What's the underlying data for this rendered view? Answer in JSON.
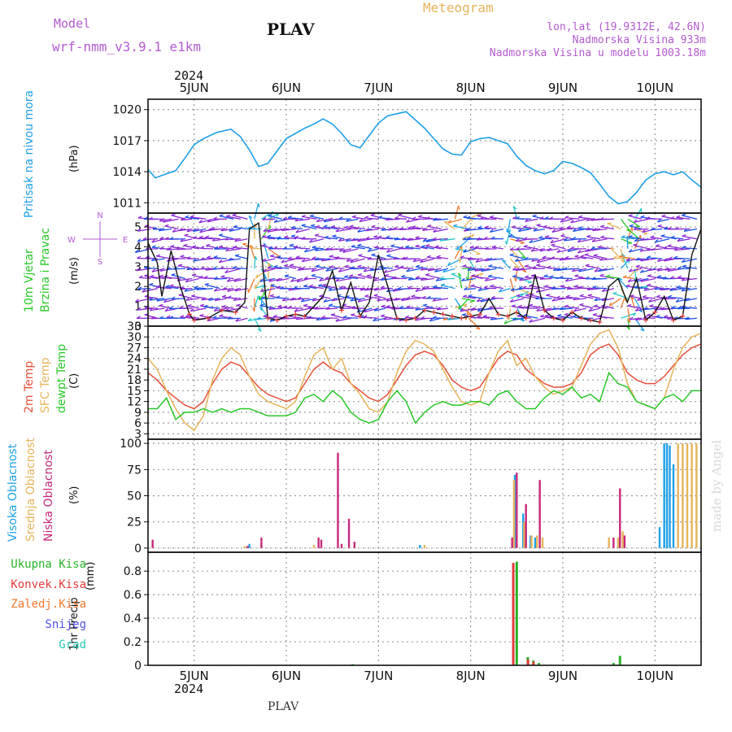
{
  "header": {
    "model_label": "Model",
    "model_name": "wrf-nmm_v3.9.1 e1km",
    "station": "PLAV",
    "product": "Meteogram",
    "coords": "lon,lat (19.9312E, 42.6N)",
    "elevation": "Nadmorska Visina 933m",
    "model_elevation": "Nadmorska Visina u modelu 1003.18m",
    "footer_station": "PLAV",
    "watermark": "made by Angel"
  },
  "colors": {
    "pressure": "#1ea0e6",
    "temp2m": "#e6503c",
    "sfc": "#e6b45a",
    "dewpt": "#28c828",
    "high_cloud": "#1ea0e6",
    "mid_cloud": "#e6b45a",
    "low_cloud": "#c8287a",
    "total_precip": "#28b428",
    "conv_precip": "#e63c3c",
    "strat_precip": "#f07830",
    "snow": "#5050e6",
    "grad": "#28c8b4"
  },
  "time_axis": {
    "year": "2024",
    "days": [
      "5JUN",
      "6JUN",
      "7JUN",
      "8JUN",
      "9JUN",
      "10JUN"
    ],
    "t_range": [
      -0.5,
      5.5
    ]
  },
  "chart_data": [
    {
      "type": "line",
      "name": "pressure",
      "ylabel": "Pritisak na nivou mora",
      "unit": "(hPa)",
      "ylim": [
        1010,
        1021
      ],
      "yticks": [
        1011,
        1014,
        1017,
        1020
      ],
      "x": [
        -0.5,
        -0.42,
        -0.3,
        -0.2,
        -0.1,
        0.0,
        0.1,
        0.25,
        0.4,
        0.5,
        0.6,
        0.7,
        0.8,
        0.9,
        1.0,
        1.1,
        1.2,
        1.3,
        1.4,
        1.5,
        1.6,
        1.7,
        1.8,
        1.9,
        2.0,
        2.1,
        2.2,
        2.3,
        2.4,
        2.5,
        2.6,
        2.7,
        2.8,
        2.9,
        3.0,
        3.1,
        3.2,
        3.3,
        3.4,
        3.5,
        3.6,
        3.7,
        3.8,
        3.9,
        4.0,
        4.1,
        4.2,
        4.3,
        4.4,
        4.5,
        4.6,
        4.7,
        4.8,
        4.9,
        5.0,
        5.1,
        5.2,
        5.3,
        5.4,
        5.5
      ],
      "y": [
        1014.2,
        1013.4,
        1013.8,
        1014.1,
        1015.3,
        1016.6,
        1017.2,
        1017.8,
        1018.1,
        1017.4,
        1016.1,
        1014.5,
        1014.8,
        1016.0,
        1017.2,
        1017.7,
        1018.2,
        1018.6,
        1019.1,
        1018.6,
        1017.7,
        1016.6,
        1016.3,
        1017.5,
        1018.7,
        1019.4,
        1019.6,
        1019.8,
        1019.0,
        1018.2,
        1017.2,
        1016.2,
        1015.7,
        1015.6,
        1016.9,
        1017.2,
        1017.3,
        1017.0,
        1016.7,
        1015.5,
        1014.6,
        1014.1,
        1013.8,
        1014.1,
        1015.0,
        1014.8,
        1014.4,
        1013.9,
        1012.8,
        1011.6,
        1010.9,
        1011.1,
        1012.0,
        1013.2,
        1013.8,
        1014.0,
        1013.7,
        1014.0,
        1013.2,
        1012.5
      ]
    },
    {
      "type": "line",
      "name": "wind",
      "ylabel": "10m Vjetar Brzina i Pravac",
      "unit": "(m/s)",
      "ylim": [
        0,
        5.7
      ],
      "yticks": [
        0,
        1,
        2,
        3,
        4,
        5
      ],
      "compass": {
        "n": "N",
        "s": "S",
        "e": "E",
        "w": "W"
      },
      "x": [
        -0.5,
        -0.4,
        -0.35,
        -0.25,
        -0.15,
        -0.05,
        0.0,
        0.15,
        0.3,
        0.45,
        0.55,
        0.6,
        0.7,
        0.8,
        0.9,
        1.0,
        1.1,
        1.2,
        1.3,
        1.4,
        1.5,
        1.6,
        1.7,
        1.8,
        1.9,
        2.0,
        2.1,
        2.2,
        2.3,
        2.4,
        2.5,
        2.6,
        2.7,
        2.8,
        2.9,
        3.0,
        3.1,
        3.2,
        3.3,
        3.4,
        3.5,
        3.6,
        3.7,
        3.8,
        3.9,
        4.0,
        4.1,
        4.2,
        4.3,
        4.4,
        4.5,
        4.6,
        4.7,
        4.8,
        4.9,
        5.0,
        5.1,
        5.2,
        5.3,
        5.4,
        5.5
      ],
      "y": [
        4.2,
        3.2,
        1.5,
        3.8,
        2.0,
        0.6,
        0.3,
        0.4,
        0.8,
        0.7,
        1.2,
        4.9,
        5.2,
        0.4,
        0.3,
        0.5,
        0.6,
        0.5,
        1.0,
        1.5,
        2.8,
        0.8,
        2.2,
        0.5,
        1.2,
        3.6,
        2.0,
        0.4,
        0.3,
        0.4,
        0.8,
        0.7,
        0.6,
        0.5,
        0.4,
        0.5,
        0.6,
        1.4,
        0.6,
        0.5,
        0.7,
        0.4,
        2.6,
        0.8,
        0.4,
        0.3,
        0.7,
        0.4,
        0.3,
        0.2,
        2.0,
        2.4,
        1.2,
        2.4,
        0.3,
        0.7,
        1.5,
        0.3,
        0.5,
        3.6,
        4.9
      ]
    },
    {
      "type": "line",
      "name": "temperature",
      "ylabel": [
        "2m Temp",
        "SFC Temp",
        "dewpt Temp"
      ],
      "unit": "(C)",
      "ylim": [
        1.5,
        33
      ],
      "yticks": [
        3,
        6,
        9,
        12,
        15,
        18,
        21,
        24,
        27,
        30,
        33
      ],
      "x": [
        -0.5,
        -0.4,
        -0.3,
        -0.2,
        -0.1,
        0.0,
        0.1,
        0.2,
        0.3,
        0.4,
        0.5,
        0.6,
        0.7,
        0.8,
        0.9,
        1.0,
        1.1,
        1.2,
        1.3,
        1.4,
        1.5,
        1.6,
        1.7,
        1.8,
        1.9,
        2.0,
        2.1,
        2.2,
        2.3,
        2.4,
        2.5,
        2.6,
        2.7,
        2.8,
        2.9,
        3.0,
        3.1,
        3.2,
        3.3,
        3.4,
        3.5,
        3.6,
        3.7,
        3.8,
        3.9,
        4.0,
        4.1,
        4.2,
        4.3,
        4.4,
        4.5,
        4.6,
        4.7,
        4.8,
        4.9,
        5.0,
        5.1,
        5.2,
        5.3,
        5.4,
        5.5
      ],
      "series": [
        {
          "name": "2m Temp",
          "color_key": "temp2m",
          "values": [
            20,
            18,
            15,
            13,
            11,
            10,
            12,
            17,
            21,
            23,
            22,
            19,
            16,
            14,
            13,
            12,
            13,
            17,
            21,
            23,
            21,
            20,
            17,
            15,
            13,
            12,
            14,
            18,
            22,
            25,
            26,
            25,
            22,
            18,
            16,
            15,
            16,
            20,
            24,
            26,
            25,
            21,
            19,
            17,
            16,
            16,
            17,
            20,
            25,
            27,
            28,
            25,
            20,
            18,
            17,
            17,
            19,
            22,
            25,
            27,
            28
          ]
        },
        {
          "name": "SFC Temp",
          "color_key": "sfc",
          "values": [
            24,
            21,
            15,
            10,
            6,
            4,
            8,
            18,
            24,
            27,
            25,
            19,
            14,
            12,
            11,
            10,
            12,
            19,
            25,
            27,
            21,
            24,
            17,
            14,
            10,
            9,
            12,
            20,
            26,
            29,
            28,
            26,
            21,
            16,
            12,
            11,
            12,
            20,
            26,
            29,
            22,
            24,
            19,
            16,
            14,
            15,
            16,
            22,
            28,
            31,
            32,
            27,
            17,
            12,
            11,
            10,
            13,
            21,
            27,
            30,
            31
          ]
        },
        {
          "name": "dewpt Temp",
          "color_key": "dewpt",
          "values": [
            10,
            10,
            13,
            7,
            9,
            9,
            10,
            9,
            10,
            9,
            10,
            10,
            9,
            8,
            8,
            8,
            9,
            13,
            14,
            12,
            15,
            13,
            9,
            7,
            6,
            7,
            12,
            15,
            12,
            6,
            9,
            11,
            12,
            11,
            11,
            12,
            12,
            11,
            14,
            15,
            12,
            10,
            10,
            13,
            15,
            14,
            16,
            13,
            14,
            12,
            20,
            17,
            16,
            12,
            11,
            10,
            13,
            14,
            12,
            15,
            15
          ]
        }
      ]
    },
    {
      "type": "bar",
      "name": "cloud_cover",
      "ylabel": [
        "Visoka Oblacnost",
        "Srednja Oblacnost",
        "Niska Oblacnost"
      ],
      "unit": "(%)",
      "ylim": [
        -4,
        104
      ],
      "yticks": [
        0,
        25,
        50,
        75,
        100
      ],
      "series": [
        {
          "name": "Visoka Oblacnost",
          "color_key": "high_cloud",
          "x": [
            0.6,
            1.35,
            2.45,
            3.48,
            3.57,
            3.65,
            3.7,
            4.6,
            5.05,
            5.1,
            5.13,
            5.16,
            5.2
          ],
          "values": [
            4,
            2,
            3,
            70,
            33,
            12,
            10,
            8,
            20,
            100,
            100,
            98,
            80
          ]
        },
        {
          "name": "Srednja Oblacnost",
          "color_key": "mid_cloud",
          "x": [
            0.55,
            1.3,
            2.5,
            3.47,
            3.58,
            3.66,
            3.72,
            3.78,
            4.5,
            4.6,
            4.65,
            5.25,
            5.3,
            5.35,
            5.4,
            5.45
          ],
          "values": [
            2,
            3,
            3,
            65,
            25,
            12,
            12,
            10,
            10,
            10,
            16,
            100,
            100,
            100,
            100,
            100
          ]
        },
        {
          "name": "Niska Oblacnost",
          "color_key": "low_cloud",
          "x": [
            -0.45,
            0.58,
            0.73,
            1.35,
            1.38,
            1.6,
            3.45,
            3.5,
            3.6,
            3.75,
            4.55,
            4.62,
            4.67
          ],
          "values": [
            8,
            2,
            10,
            10,
            8,
            4,
            10,
            72,
            42,
            65,
            10,
            57,
            12
          ]
        },
        {
          "name": "Niska Oblacnost",
          "color_key": "low_cloud",
          "x": [
            1.56,
            1.68,
            1.74
          ],
          "values": [
            91,
            28,
            6
          ]
        }
      ]
    },
    {
      "type": "bar",
      "name": "precipitation",
      "ylabel": "1hr Precip",
      "unit": "(mm)",
      "ylim": [
        0,
        0.96
      ],
      "yticks": [
        0,
        0.2,
        0.4,
        0.6,
        0.8
      ],
      "yticklabels": [
        "0",
        "0.2",
        "0.4",
        "0.6",
        "0.8"
      ],
      "legend": [
        "Ukupna Kisa",
        "Konvek.Kisa",
        "Zaledj.Kisa",
        "Snijeg",
        "Grad"
      ],
      "series": [
        {
          "name": "Ukupna Kisa",
          "color_key": "total_precip",
          "x": [
            1.72,
            3.5,
            3.62,
            3.68,
            3.74,
            4.55,
            4.62
          ],
          "values": [
            0.01,
            0.88,
            0.07,
            0.04,
            0.02,
            0.02,
            0.08
          ]
        },
        {
          "name": "Konvek.Kisa",
          "color_key": "conv_precip",
          "x": [
            3.48,
            3.64,
            3.7
          ],
          "values": [
            0.87,
            0.05,
            0.03
          ]
        }
      ]
    }
  ]
}
